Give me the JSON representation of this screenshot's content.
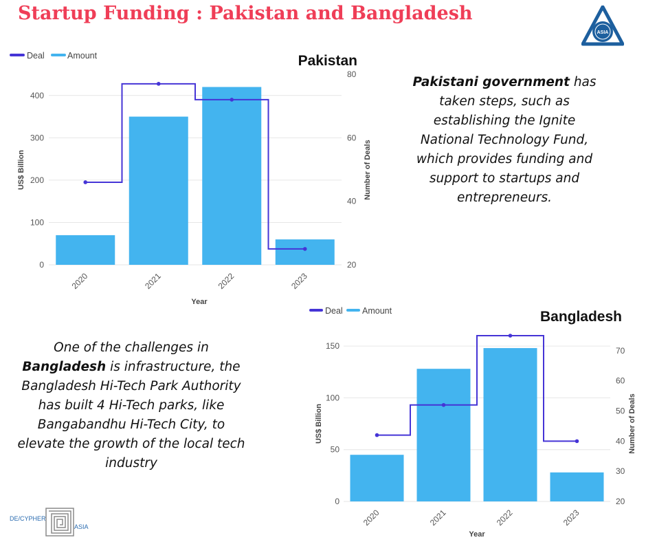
{
  "page": {
    "title": "Startup Funding :  Pakistan and Bangladesh",
    "logo_text": "ASIA",
    "footer_logo": {
      "left_text": "DE/CYPHER",
      "right_text": "ASIA"
    }
  },
  "texts": {
    "pakistan": {
      "bold": "Pakistani government",
      "rest": " has taken steps, such as establishing the Ignite National Technology Fund, which provides funding and support to startups and entrepreneurs."
    },
    "bangladesh": {
      "before": "One of the challenges in ",
      "bold": "Bangladesh",
      "after": " is infrastructure, the Bangladesh Hi-Tech Park Authority has built 4 Hi-Tech parks, like Bangabandhu Hi-Tech City, to elevate the growth of the local tech industry"
    }
  },
  "colors": {
    "title": "#ef3e57",
    "bar": "#43b4ef",
    "line": "#4534d6"
  },
  "chart_data": [
    {
      "type": "bar",
      "title": "Pakistan",
      "xlabel": "Year",
      "ylabel": "US$ Billion",
      "y2label": "Number of Deals",
      "categories": [
        "2020",
        "2021",
        "2022",
        "2023"
      ],
      "ylim": [
        0,
        450
      ],
      "yticks": [
        0,
        100,
        200,
        300,
        400
      ],
      "y2lim": [
        20,
        80
      ],
      "y2ticks": [
        20,
        40,
        60,
        80
      ],
      "legend": {
        "position": "top-left",
        "deal": "Deal",
        "amount": "Amount"
      },
      "grid": true,
      "series": [
        {
          "name": "Amount",
          "type": "bar",
          "axis": "left",
          "values": [
            70,
            350,
            420,
            60
          ]
        },
        {
          "name": "Deal",
          "type": "step-line",
          "axis": "right",
          "values": [
            46,
            77,
            72,
            25
          ]
        }
      ]
    },
    {
      "type": "bar",
      "title": "Bangladesh",
      "xlabel": "Year",
      "ylabel": "US$ Billion",
      "y2label": "Number of Deals",
      "categories": [
        "2020",
        "2021",
        "2022",
        "2023"
      ],
      "ylim": [
        0,
        160
      ],
      "yticks": [
        0,
        50,
        100,
        150
      ],
      "y2lim": [
        20,
        75
      ],
      "y2ticks": [
        20,
        30,
        40,
        50,
        60,
        70
      ],
      "legend": {
        "position": "top-left",
        "deal": "Deal",
        "amount": "Amount"
      },
      "grid": true,
      "series": [
        {
          "name": "Amount",
          "type": "bar",
          "axis": "left",
          "values": [
            45,
            128,
            148,
            28
          ]
        },
        {
          "name": "Deal",
          "type": "step-line",
          "axis": "right",
          "values": [
            42,
            52,
            75,
            40
          ]
        }
      ]
    }
  ]
}
